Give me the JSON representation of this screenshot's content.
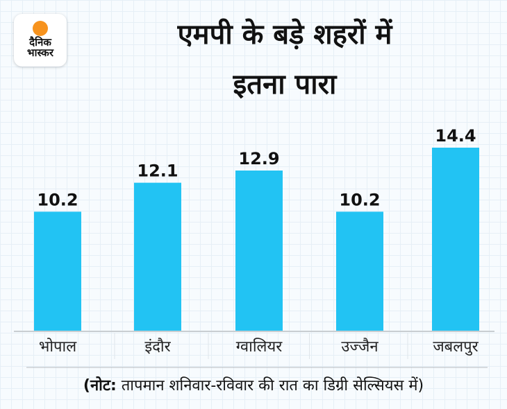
{
  "logo": {
    "line1": "दैनिक",
    "line2": "भास्कर"
  },
  "chart_data": {
    "type": "bar",
    "title": [
      "एमपी के बड़े शहरों में",
      "इतना पारा"
    ],
    "categories": [
      "भोपाल",
      "इंदौर",
      "ग्वालियर",
      "उज्जैन",
      "जबलपुर"
    ],
    "values": [
      10.2,
      12.1,
      12.9,
      10.2,
      14.4
    ],
    "value_labels": [
      "10.2",
      "12.1",
      "12.9",
      "10.2",
      "14.4"
    ],
    "xlabel": "",
    "ylabel": "",
    "grid": false,
    "bar_color": "#22c3f3"
  },
  "note": {
    "bold": "(नोट:",
    "text": " तापमान शनिवार-रविवार की रात का डिग्री सेल्सियस में)"
  }
}
